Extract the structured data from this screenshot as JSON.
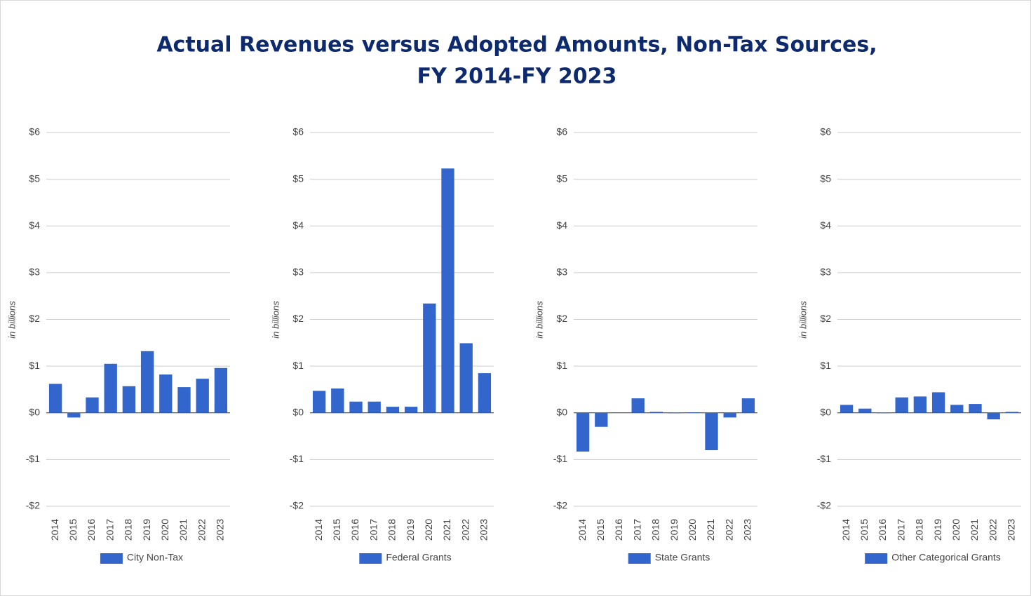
{
  "title": [
    "Actual Revenues versus Adopted Amounts, Non-Tax Sources,",
    "FY 2014-FY 2023"
  ],
  "chart_data": [
    {
      "type": "bar",
      "ylabel": "in billions",
      "color": "#3366cc",
      "grid": true,
      "categories": [
        "2014",
        "2015",
        "2016",
        "2017",
        "2018",
        "2019",
        "2020",
        "2021",
        "2022",
        "2023"
      ],
      "series": [
        {
          "name": "City Non-Tax",
          "color": "#3366cc",
          "values": [
            0.62,
            -0.1,
            0.33,
            1.05,
            0.57,
            1.32,
            0.82,
            0.55,
            0.73,
            0.96
          ]
        }
      ],
      "ylim": [
        -2,
        6
      ],
      "yticks": [
        {
          "value": -2,
          "label": "-$2"
        },
        {
          "value": -1,
          "label": "-$1"
        },
        {
          "value": 0,
          "label": "$0"
        },
        {
          "value": 1,
          "label": "$1"
        },
        {
          "value": 2,
          "label": "$2"
        },
        {
          "value": 3,
          "label": "$3"
        },
        {
          "value": 4,
          "label": "$4"
        },
        {
          "value": 5,
          "label": "$5"
        },
        {
          "value": 6,
          "label": "$6"
        }
      ]
    },
    {
      "type": "bar",
      "ylabel": "in billions",
      "color": "#3366cc",
      "grid": true,
      "categories": [
        "2014",
        "2015",
        "2016",
        "2017",
        "2018",
        "2019",
        "2020",
        "2021",
        "2022",
        "2023"
      ],
      "series": [
        {
          "name": "Federal Grants",
          "color": "#3366cc",
          "values": [
            0.47,
            0.52,
            0.24,
            0.24,
            0.13,
            0.13,
            2.34,
            5.23,
            1.49,
            0.85
          ]
        }
      ],
      "ylim": [
        -2,
        6
      ],
      "yticks": [
        {
          "value": -2,
          "label": "-$2"
        },
        {
          "value": -1,
          "label": "-$1"
        },
        {
          "value": 0,
          "label": "$0"
        },
        {
          "value": 1,
          "label": "$1"
        },
        {
          "value": 2,
          "label": "$2"
        },
        {
          "value": 3,
          "label": "$3"
        },
        {
          "value": 4,
          "label": "$4"
        },
        {
          "value": 5,
          "label": "$5"
        },
        {
          "value": 6,
          "label": "$6"
        }
      ]
    },
    {
      "type": "bar",
      "ylabel": "in billions",
      "color": "#3366cc",
      "grid": true,
      "categories": [
        "2014",
        "2015",
        "2016",
        "2017",
        "2018",
        "2019",
        "2020",
        "2021",
        "2022",
        "2023"
      ],
      "series": [
        {
          "name": "State Grants",
          "color": "#3366cc",
          "values": [
            -0.83,
            -0.3,
            0,
            0.31,
            0.02,
            -0.01,
            0.01,
            -0.8,
            -0.1,
            0.31
          ]
        }
      ],
      "ylim": [
        -2,
        6
      ],
      "yticks": [
        {
          "value": -2,
          "label": "-$2"
        },
        {
          "value": -1,
          "label": "-$1"
        },
        {
          "value": 0,
          "label": "$0"
        },
        {
          "value": 1,
          "label": "$1"
        },
        {
          "value": 2,
          "label": "$2"
        },
        {
          "value": 3,
          "label": "$3"
        },
        {
          "value": 4,
          "label": "$4"
        },
        {
          "value": 5,
          "label": "$5"
        },
        {
          "value": 6,
          "label": "$6"
        }
      ]
    },
    {
      "type": "bar",
      "ylabel": "in billions",
      "color": "#3366cc",
      "grid": true,
      "categories": [
        "2014",
        "2015",
        "2016",
        "2017",
        "2018",
        "2019",
        "2020",
        "2021",
        "2022",
        "2023"
      ],
      "series": [
        {
          "name": "Other Categorical Grants",
          "color": "#3366cc",
          "values": [
            0.17,
            0.09,
            -0.01,
            0.33,
            0.35,
            0.44,
            0.17,
            0.19,
            -0.14,
            0.02
          ]
        }
      ],
      "ylim": [
        -2,
        6
      ],
      "yticks": [
        {
          "value": -2,
          "label": "-$2"
        },
        {
          "value": -1,
          "label": "-$1"
        },
        {
          "value": 0,
          "label": "$0"
        },
        {
          "value": 1,
          "label": "$1"
        },
        {
          "value": 2,
          "label": "$2"
        },
        {
          "value": 3,
          "label": "$3"
        },
        {
          "value": 4,
          "label": "$4"
        },
        {
          "value": 5,
          "label": "$5"
        },
        {
          "value": 6,
          "label": "$6"
        }
      ]
    }
  ]
}
